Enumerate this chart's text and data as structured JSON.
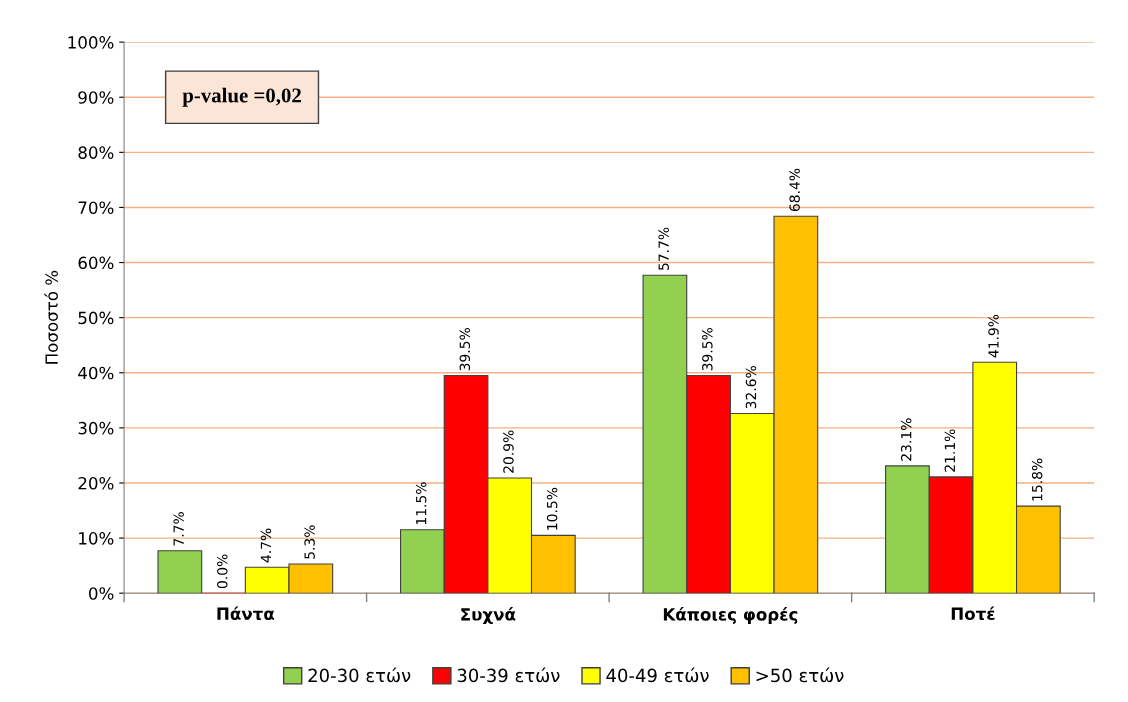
{
  "chart_data": {
    "type": "bar",
    "ylabel": "Ποσοστό %",
    "categories": [
      "Πάντα",
      "Συχνά",
      "Κάποιες φορές",
      "Ποτέ"
    ],
    "series": [
      {
        "name": "20-30 ετών",
        "color": "#92d050",
        "values": [
          7.7,
          11.5,
          57.7,
          23.1
        ],
        "value_labels": [
          "7.7%",
          "11.5%",
          "57.7%",
          "23.1%"
        ]
      },
      {
        "name": "30-39 ετών",
        "color": "#ff0000",
        "values": [
          0.0,
          39.5,
          39.5,
          21.1
        ],
        "value_labels": [
          "0.0%",
          "39.5%",
          "39.5%",
          "21.1%"
        ]
      },
      {
        "name": "40-49 ετών",
        "color": "#ffff00",
        "values": [
          4.7,
          20.9,
          32.6,
          41.9
        ],
        "value_labels": [
          "4.7%",
          "20.9%",
          "32.6%",
          "41.9%"
        ]
      },
      {
        "name": ">50 ετών",
        "color": "#ffc000",
        "values": [
          5.3,
          10.5,
          68.4,
          15.8
        ],
        "value_labels": [
          "5.3%",
          "10.5%",
          "68.4%",
          "15.8%"
        ]
      }
    ],
    "ylim": [
      0,
      100
    ],
    "yticks": [
      {
        "value": 0,
        "label": "0%"
      },
      {
        "value": 10,
        "label": "10%"
      },
      {
        "value": 20,
        "label": "20%"
      },
      {
        "value": 30,
        "label": "30%"
      },
      {
        "value": 40,
        "label": "40%"
      },
      {
        "value": 50,
        "label": "50%"
      },
      {
        "value": 60,
        "label": "60%"
      },
      {
        "value": 70,
        "label": "70%"
      },
      {
        "value": 80,
        "label": "80%"
      },
      {
        "value": 90,
        "label": "90%"
      },
      {
        "value": 100,
        "label": "100%"
      }
    ],
    "grid": "y",
    "legend": "bottom",
    "annotations": [
      "p-value =0,02"
    ]
  }
}
